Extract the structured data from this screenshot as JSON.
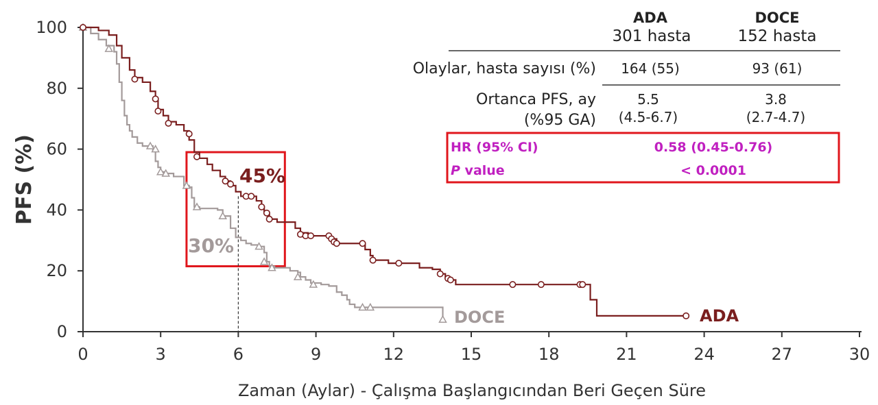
{
  "chart_data": {
    "type": "line",
    "title": "",
    "xlabel": "Zaman (Aylar) - Çalışma Başlangıcından Beri Geçen Süre",
    "ylabel": "PFS (%)",
    "xlim": [
      0,
      30
    ],
    "ylim": [
      0,
      100
    ],
    "x_ticks": [
      0,
      3,
      6,
      9,
      12,
      15,
      18,
      21,
      24,
      27,
      30
    ],
    "y_ticks": [
      0,
      20,
      40,
      60,
      80,
      100
    ],
    "grid": false,
    "series": [
      {
        "name": "ADA",
        "color": "#7a1e1e",
        "marker": "circle",
        "points": [
          [
            0,
            100
          ],
          [
            0.6,
            99
          ],
          [
            1.0,
            97.5
          ],
          [
            1.3,
            94
          ],
          [
            1.5,
            90
          ],
          [
            1.8,
            86
          ],
          [
            2.0,
            83.5
          ],
          [
            2.3,
            82
          ],
          [
            2.6,
            79
          ],
          [
            2.8,
            76.5
          ],
          [
            2.9,
            73
          ],
          [
            3.1,
            71
          ],
          [
            3.3,
            69
          ],
          [
            3.6,
            68
          ],
          [
            3.9,
            66
          ],
          [
            4.1,
            63
          ],
          [
            4.3,
            59
          ],
          [
            4.5,
            57
          ],
          [
            4.8,
            55
          ],
          [
            5.0,
            53
          ],
          [
            5.3,
            51
          ],
          [
            5.5,
            49.5
          ],
          [
            5.7,
            48
          ],
          [
            5.9,
            46
          ],
          [
            6.1,
            44.5
          ],
          [
            6.5,
            44.5
          ],
          [
            6.7,
            43
          ],
          [
            6.9,
            41
          ],
          [
            7.0,
            39
          ],
          [
            7.2,
            37
          ],
          [
            7.5,
            36
          ],
          [
            8.2,
            34
          ],
          [
            8.4,
            32.5
          ],
          [
            8.7,
            31.5
          ],
          [
            9.2,
            31.5
          ],
          [
            9.5,
            31
          ],
          [
            9.6,
            30.5
          ],
          [
            9.8,
            29
          ],
          [
            10.2,
            29
          ],
          [
            10.5,
            29
          ],
          [
            10.9,
            27
          ],
          [
            11.1,
            25
          ],
          [
            11.2,
            23.5
          ],
          [
            11.8,
            22.5
          ],
          [
            12.5,
            22.5
          ],
          [
            13.0,
            21
          ],
          [
            13.5,
            20.5
          ],
          [
            13.8,
            19
          ],
          [
            14.0,
            17.5
          ],
          [
            14.2,
            17
          ],
          [
            14.4,
            15.5
          ],
          [
            15.0,
            15.5
          ],
          [
            16.0,
            15.5
          ],
          [
            17.0,
            15.5
          ],
          [
            18.0,
            15.5
          ],
          [
            19.2,
            15.5
          ],
          [
            19.5,
            15.5
          ],
          [
            19.6,
            10.5
          ],
          [
            19.8,
            10.5
          ],
          [
            19.85,
            5.2
          ],
          [
            20.5,
            5.2
          ],
          [
            22.0,
            5.2
          ],
          [
            23.3,
            5.2
          ]
        ],
        "censor_marks": [
          [
            0,
            100
          ],
          [
            2.0,
            83
          ],
          [
            2.8,
            76.5
          ],
          [
            2.9,
            72.5
          ],
          [
            3.3,
            68.5
          ],
          [
            4.1,
            65
          ],
          [
            4.4,
            57.5
          ],
          [
            5.5,
            49.5
          ],
          [
            5.7,
            48.5
          ],
          [
            6.3,
            44.5
          ],
          [
            6.5,
            44.5
          ],
          [
            6.9,
            41
          ],
          [
            7.1,
            39
          ],
          [
            7.2,
            37
          ],
          [
            8.4,
            32
          ],
          [
            8.6,
            31.5
          ],
          [
            8.8,
            31.5
          ],
          [
            9.5,
            31.5
          ],
          [
            9.6,
            30.5
          ],
          [
            9.7,
            29.5
          ],
          [
            9.8,
            29
          ],
          [
            10.8,
            29
          ],
          [
            11.2,
            23.5
          ],
          [
            12.2,
            22.5
          ],
          [
            13.8,
            19
          ],
          [
            14.1,
            17.5
          ],
          [
            14.2,
            17
          ],
          [
            16.6,
            15.5
          ],
          [
            17.7,
            15.5
          ],
          [
            19.2,
            15.5
          ],
          [
            19.3,
            15.5
          ],
          [
            23.3,
            5.2
          ]
        ],
        "end_label": "ADA"
      },
      {
        "name": "DOCE",
        "color": "#a39a9a",
        "marker": "triangle",
        "points": [
          [
            0,
            100
          ],
          [
            0.3,
            98
          ],
          [
            0.6,
            96
          ],
          [
            0.9,
            94
          ],
          [
            1.2,
            92
          ],
          [
            1.3,
            88
          ],
          [
            1.4,
            82
          ],
          [
            1.5,
            76
          ],
          [
            1.6,
            71
          ],
          [
            1.7,
            68
          ],
          [
            1.8,
            66
          ],
          [
            1.9,
            64
          ],
          [
            2.1,
            62
          ],
          [
            2.3,
            61
          ],
          [
            2.6,
            61
          ],
          [
            2.7,
            59.5
          ],
          [
            2.8,
            56
          ],
          [
            2.9,
            54
          ],
          [
            3.0,
            52.5
          ],
          [
            3.2,
            52
          ],
          [
            3.5,
            51
          ],
          [
            3.9,
            48
          ],
          [
            4.1,
            47.5
          ],
          [
            4.2,
            44
          ],
          [
            4.3,
            41
          ],
          [
            4.5,
            40.5
          ],
          [
            5.2,
            40
          ],
          [
            5.4,
            38
          ],
          [
            5.7,
            34
          ],
          [
            5.9,
            31
          ],
          [
            6.1,
            30
          ],
          [
            6.3,
            29
          ],
          [
            6.5,
            28.5
          ],
          [
            6.8,
            28
          ],
          [
            7.0,
            26
          ],
          [
            7.1,
            23
          ],
          [
            7.2,
            21.5
          ],
          [
            7.4,
            21
          ],
          [
            8.0,
            20
          ],
          [
            8.3,
            19.5
          ],
          [
            8.4,
            18
          ],
          [
            8.6,
            17
          ],
          [
            8.8,
            16
          ],
          [
            9.2,
            15.5
          ],
          [
            9.5,
            15
          ],
          [
            9.8,
            13
          ],
          [
            10.0,
            12
          ],
          [
            10.2,
            10.5
          ],
          [
            10.3,
            9
          ],
          [
            10.5,
            8
          ],
          [
            11.3,
            8
          ],
          [
            12.0,
            8
          ],
          [
            13.0,
            8
          ],
          [
            13.9,
            8
          ],
          [
            13.9,
            4
          ]
        ],
        "censor_marks": [
          [
            0,
            100
          ],
          [
            1.0,
            93
          ],
          [
            2.6,
            61
          ],
          [
            2.8,
            60
          ],
          [
            3.0,
            52.5
          ],
          [
            3.2,
            52
          ],
          [
            4.0,
            48
          ],
          [
            4.4,
            41
          ],
          [
            5.4,
            38
          ],
          [
            6.8,
            28
          ],
          [
            7.0,
            23
          ],
          [
            7.3,
            21
          ],
          [
            8.3,
            18
          ],
          [
            8.9,
            15.5
          ],
          [
            10.8,
            8
          ],
          [
            11.1,
            8
          ],
          [
            13.9,
            4
          ]
        ],
        "end_label": "DOCE"
      }
    ],
    "annotations": {
      "box_ada_pct": "45%",
      "box_doce_pct": "30%",
      "box_range": {
        "x": [
          4,
          7.8
        ],
        "y": [
          21.5,
          59
        ]
      },
      "median_line_x": 6,
      "median_line_y": 44.5,
      "highlight_color": "#e0161c"
    },
    "table": {
      "col1_header": "ADA",
      "col1_sub": "301 hasta",
      "col2_header": "DOCE",
      "col2_sub": "152 hasta",
      "row1_label": "Olaylar, hasta sayısı (%)",
      "row1_col1": "164 (55)",
      "row1_col2": "93 (61)",
      "row2_label_line1": "Ortanca PFS, ay",
      "row2_label_line2": "(%95 GA)",
      "row2_col1_line1": "5.5",
      "row2_col1_line2": "(4.5-6.7)",
      "row2_col2_line1": "3.8",
      "row2_col2_line2": "(2.7-4.7)",
      "hr_label": "HR (95% CI)",
      "hr_value": "0.58 (0.45-0.76)",
      "p_label_italic": "P",
      "p_label_rest": " value",
      "p_value": "< 0.0001",
      "hr_color": "#c020c0"
    }
  }
}
